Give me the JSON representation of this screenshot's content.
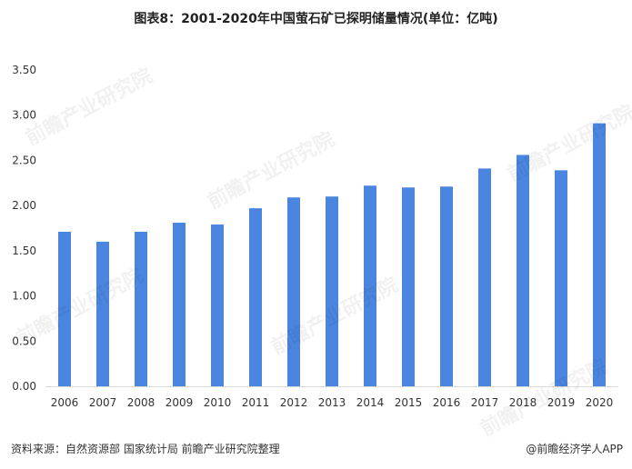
{
  "title": "图表8：2001-2020年中国萤石矿已探明储量情况(单位：亿吨)",
  "footer": {
    "source": "资料来源：自然资源部 国家统计局 前瞻产业研究院整理",
    "brand": "@前瞻经济学人APP"
  },
  "watermark": "前瞻产业研究院",
  "colors": {
    "bar": "#4a86e0",
    "axis": "#d9d9d9",
    "text": "#333333"
  },
  "chart_data": {
    "type": "bar",
    "title": "图表8：2001-2020年中国萤石矿已探明储量情况(单位：亿吨)",
    "categories": [
      "2006",
      "2007",
      "2008",
      "2009",
      "2010",
      "2011",
      "2012",
      "2013",
      "2014",
      "2015",
      "2016",
      "2017",
      "2018",
      "2019",
      "2020"
    ],
    "values": [
      1.71,
      1.6,
      1.71,
      1.81,
      1.79,
      1.97,
      2.09,
      2.1,
      2.22,
      2.2,
      2.21,
      2.41,
      2.56,
      2.39,
      2.91
    ],
    "ylim": [
      0,
      3.5
    ],
    "yticks": [
      "0.00",
      "0.50",
      "1.00",
      "1.50",
      "2.00",
      "2.50",
      "3.00",
      "3.50"
    ],
    "grid": false,
    "xlabel": "",
    "ylabel": ""
  }
}
